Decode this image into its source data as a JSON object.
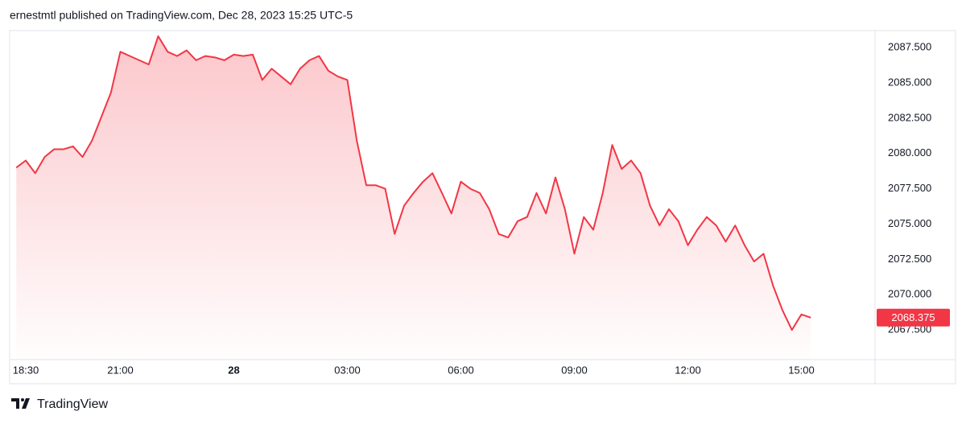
{
  "header": {
    "text": "ernestmtl published on TradingView.com, Dec 28, 2023 15:25 UTC-5"
  },
  "footer": {
    "brand": "TradingView"
  },
  "chart_data": {
    "type": "area",
    "color": "#f23645",
    "grid": false,
    "categories": [
      null,
      "18:30",
      null,
      null,
      null,
      null,
      null,
      null,
      null,
      null,
      null,
      "21:00",
      null,
      null,
      null,
      null,
      null,
      null,
      null,
      null,
      null,
      null,
      null,
      "28",
      null,
      null,
      null,
      null,
      null,
      null,
      null,
      null,
      null,
      null,
      null,
      "03:00",
      null,
      null,
      null,
      null,
      null,
      null,
      null,
      null,
      null,
      null,
      null,
      "06:00",
      null,
      null,
      null,
      null,
      null,
      null,
      null,
      null,
      null,
      null,
      null,
      "09:00",
      null,
      null,
      null,
      null,
      null,
      null,
      null,
      null,
      null,
      null,
      null,
      "12:00",
      null,
      null,
      null,
      null,
      null,
      null,
      null,
      null,
      null,
      null,
      null,
      "15:00",
      null
    ],
    "values": [
      2079.0,
      2079.5,
      2078.6,
      2079.75,
      2080.3,
      2080.3,
      2080.5,
      2079.75,
      2080.9,
      2082.6,
      2084.3,
      2087.2,
      2086.9,
      2086.6,
      2086.3,
      2088.3,
      2087.2,
      2086.9,
      2087.3,
      2086.6,
      2086.9,
      2086.8,
      2086.6,
      2087.0,
      2086.9,
      2087.0,
      2085.2,
      2086.0,
      2085.45,
      2084.9,
      2086.0,
      2086.6,
      2086.9,
      2085.85,
      2085.45,
      2085.2,
      2080.9,
      2077.75,
      2077.75,
      2077.5,
      2074.3,
      2076.3,
      2077.2,
      2078.0,
      2078.6,
      2077.2,
      2075.75,
      2078.0,
      2077.5,
      2077.2,
      2076.05,
      2074.3,
      2074.05,
      2075.2,
      2075.5,
      2077.2,
      2075.75,
      2078.3,
      2076.05,
      2072.9,
      2075.5,
      2074.6,
      2077.2,
      2080.6,
      2078.9,
      2079.5,
      2078.6,
      2076.3,
      2074.9,
      2076.05,
      2075.2,
      2073.5,
      2074.6,
      2075.5,
      2074.9,
      2073.75,
      2074.9,
      2073.5,
      2072.35,
      2072.9,
      2070.65,
      2068.9,
      2067.5,
      2068.6,
      2068.375
    ],
    "ylim": [
      2065.4,
      2088.7
    ],
    "yticks": [
      {
        "value": 2067.5,
        "label": "2067.500"
      },
      {
        "value": 2070,
        "label": "2070.000"
      },
      {
        "value": 2072.5,
        "label": "2072.500"
      },
      {
        "value": 2075,
        "label": "2075.000"
      },
      {
        "value": 2077.5,
        "label": "2077.500"
      },
      {
        "value": 2080,
        "label": "2080.000"
      },
      {
        "value": 2082.5,
        "label": "2082.500"
      },
      {
        "value": 2085,
        "label": "2085.000"
      },
      {
        "value": 2087.5,
        "label": "2087.500"
      }
    ],
    "last_value": 2068.375
  }
}
